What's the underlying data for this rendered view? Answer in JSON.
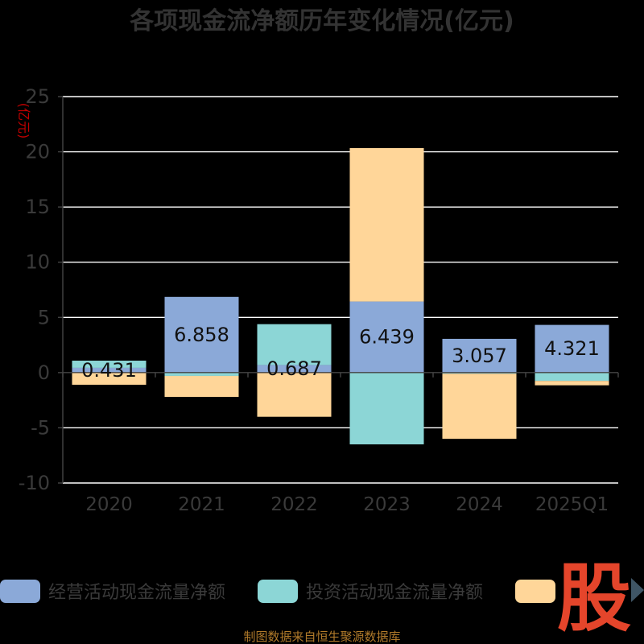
{
  "title": "各项现金流净额历年变化情况(亿元)",
  "unit_label": "(亿元)",
  "source": "制图数据来自恒生聚源数据库",
  "watermark": "股",
  "chart_data": {
    "type": "bar",
    "stacked": true,
    "categories": [
      "2020",
      "2021",
      "2022",
      "2023",
      "2024",
      "2025Q1"
    ],
    "ylim": [
      -10,
      25
    ],
    "yticks": [
      25,
      20,
      15,
      10,
      5,
      0,
      -5,
      -10
    ],
    "grid": true,
    "legend_position": "bottom",
    "series": [
      {
        "name": "经营活动现金流量净额",
        "color": "#8ba9d8",
        "values": [
          0.431,
          6.858,
          0.687,
          6.439,
          3.057,
          4.321
        ],
        "labels": [
          "0.431",
          "6.858",
          "0.687",
          "6.439",
          "3.057",
          "4.321"
        ]
      },
      {
        "name": "投资活动现金流量净额",
        "color": "#8cd6d6",
        "values": [
          0.65,
          -0.3,
          3.7,
          -6.5,
          -0.1,
          -0.75
        ],
        "labels": []
      },
      {
        "name": "",
        "color": "#ffd699",
        "values": [
          -1.1,
          -1.9,
          -4.0,
          13.9,
          -5.9,
          -0.4
        ],
        "labels": []
      }
    ]
  }
}
